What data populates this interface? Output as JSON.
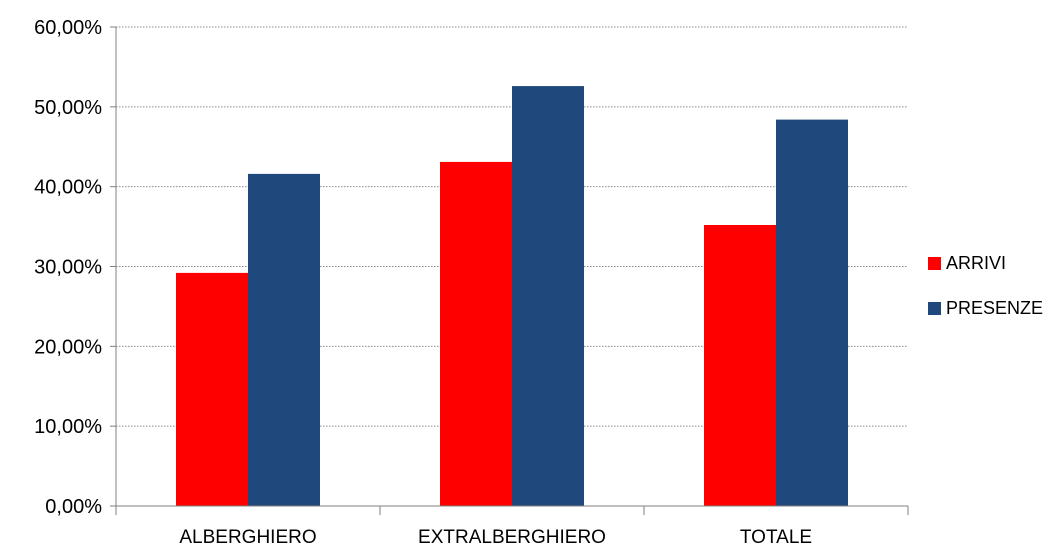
{
  "chart_data": {
    "type": "bar",
    "categories": [
      "ALBERGHIERO",
      "EXTRALBERGHIERO",
      "TOTALE"
    ],
    "series": [
      {
        "name": "ARRIVI",
        "values": [
          29.2,
          43.1,
          35.2
        ],
        "color": "#ff0000"
      },
      {
        "name": "PRESENZE",
        "values": [
          41.6,
          52.6,
          48.4
        ],
        "color": "#1f497d"
      }
    ],
    "ylim": [
      0,
      60
    ],
    "yticks": [
      0,
      10,
      20,
      30,
      40,
      50,
      60
    ],
    "ytick_labels": [
      "0,00%",
      "10,00%",
      "20,00%",
      "30,00%",
      "40,00%",
      "50,00%",
      "60,00%"
    ],
    "grid": true,
    "grid_style": "dotted",
    "legend_position": "right",
    "title": "",
    "xlabel": "",
    "ylabel": ""
  }
}
